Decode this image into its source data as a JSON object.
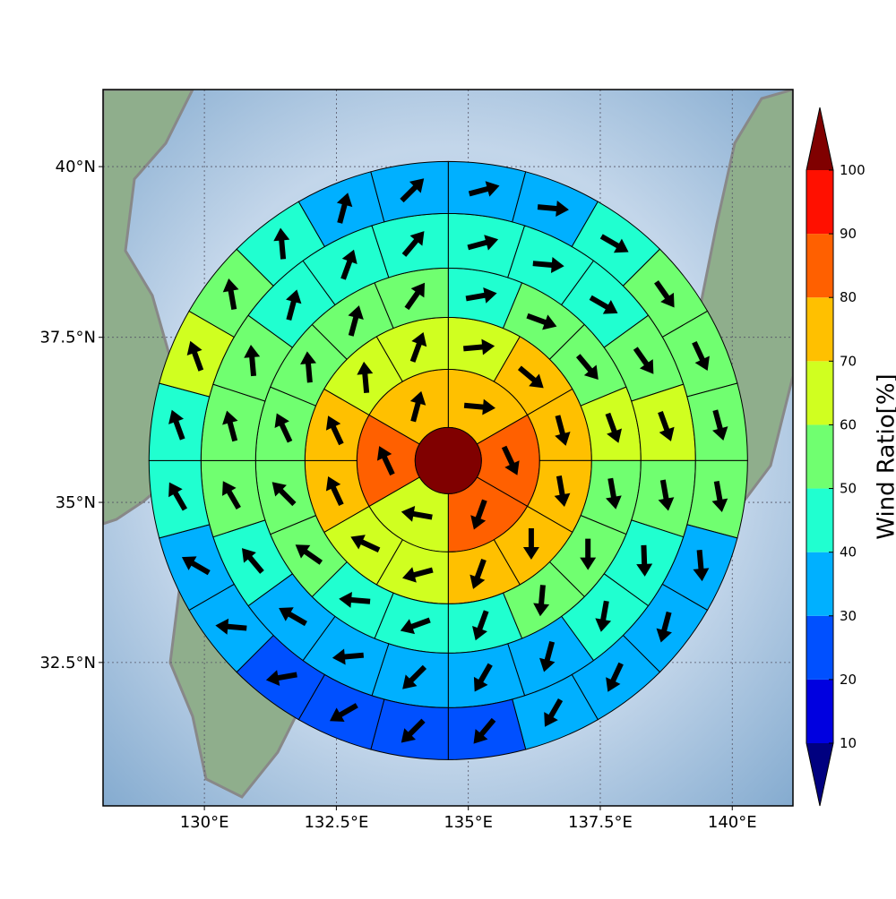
{
  "chart_data": {
    "type": "polar_grid_map",
    "xlim": [
      128.08,
      141.15
    ],
    "ylim": [
      30.2,
      41.1
    ],
    "xticks": [
      {
        "value": 130,
        "label": "130°E"
      },
      {
        "value": 132.5,
        "label": "132.5°E"
      },
      {
        "value": 135,
        "label": "135°E"
      },
      {
        "value": 137.5,
        "label": "137.5°E"
      },
      {
        "value": 140,
        "label": "140°E"
      }
    ],
    "yticks": [
      {
        "value": 32.5,
        "label": "32.5°N"
      },
      {
        "value": 35,
        "label": "35°N"
      },
      {
        "value": 37.5,
        "label": "37.5°N"
      },
      {
        "value": 40,
        "label": "40°N"
      }
    ],
    "grid": true,
    "center": {
      "lon": 134.62,
      "lat": 35.64,
      "value": 105
    },
    "rings": [
      {
        "values": [
          75,
          85,
          85,
          65,
          85,
          75
        ],
        "directions": [
          95,
          155,
          200,
          280,
          335,
          15
        ]
      },
      {
        "values": [
          65,
          75,
          75,
          75,
          75,
          75,
          65,
          65,
          75,
          75,
          65,
          65
        ],
        "directions": [
          85,
          130,
          165,
          170,
          180,
          200,
          255,
          295,
          335,
          335,
          355,
          20
        ]
      },
      {
        "values": [
          45,
          55,
          55,
          65,
          55,
          55,
          55,
          45,
          45,
          45,
          55,
          55,
          55,
          55,
          55,
          55
        ],
        "directions": [
          80,
          110,
          140,
          160,
          170,
          180,
          185,
          200,
          250,
          275,
          305,
          315,
          335,
          355,
          15,
          35
        ]
      },
      {
        "values": [
          45,
          45,
          45,
          55,
          65,
          55,
          45,
          45,
          35,
          35,
          35,
          35,
          35,
          45,
          55,
          55,
          55,
          45,
          45,
          45
        ],
        "directions": [
          75,
          95,
          120,
          145,
          160,
          170,
          178,
          190,
          195,
          210,
          225,
          265,
          300,
          320,
          330,
          345,
          355,
          15,
          20,
          40
        ]
      },
      {
        "values": [
          35,
          35,
          45,
          55,
          55,
          55,
          55,
          35,
          35,
          35,
          35,
          25,
          25,
          25,
          25,
          35,
          35,
          45,
          45,
          65,
          55,
          45,
          35,
          35
        ],
        "directions": [
          75,
          95,
          120,
          145,
          155,
          165,
          170,
          175,
          195,
          205,
          210,
          220,
          225,
          240,
          260,
          275,
          300,
          330,
          340,
          340,
          350,
          355,
          15,
          45
        ]
      }
    ],
    "colorbar": {
      "label": "Wind Ratio[%]",
      "ticks": [
        10,
        20,
        30,
        40,
        50,
        60,
        70,
        80,
        90,
        100
      ],
      "colors": [
        "#000080",
        "#0000e0",
        "#0050ff",
        "#00b0ff",
        "#20ffd0",
        "#70ff70",
        "#d0ff20",
        "#ffc000",
        "#ff6000",
        "#ff1000",
        "#800000"
      ]
    }
  }
}
